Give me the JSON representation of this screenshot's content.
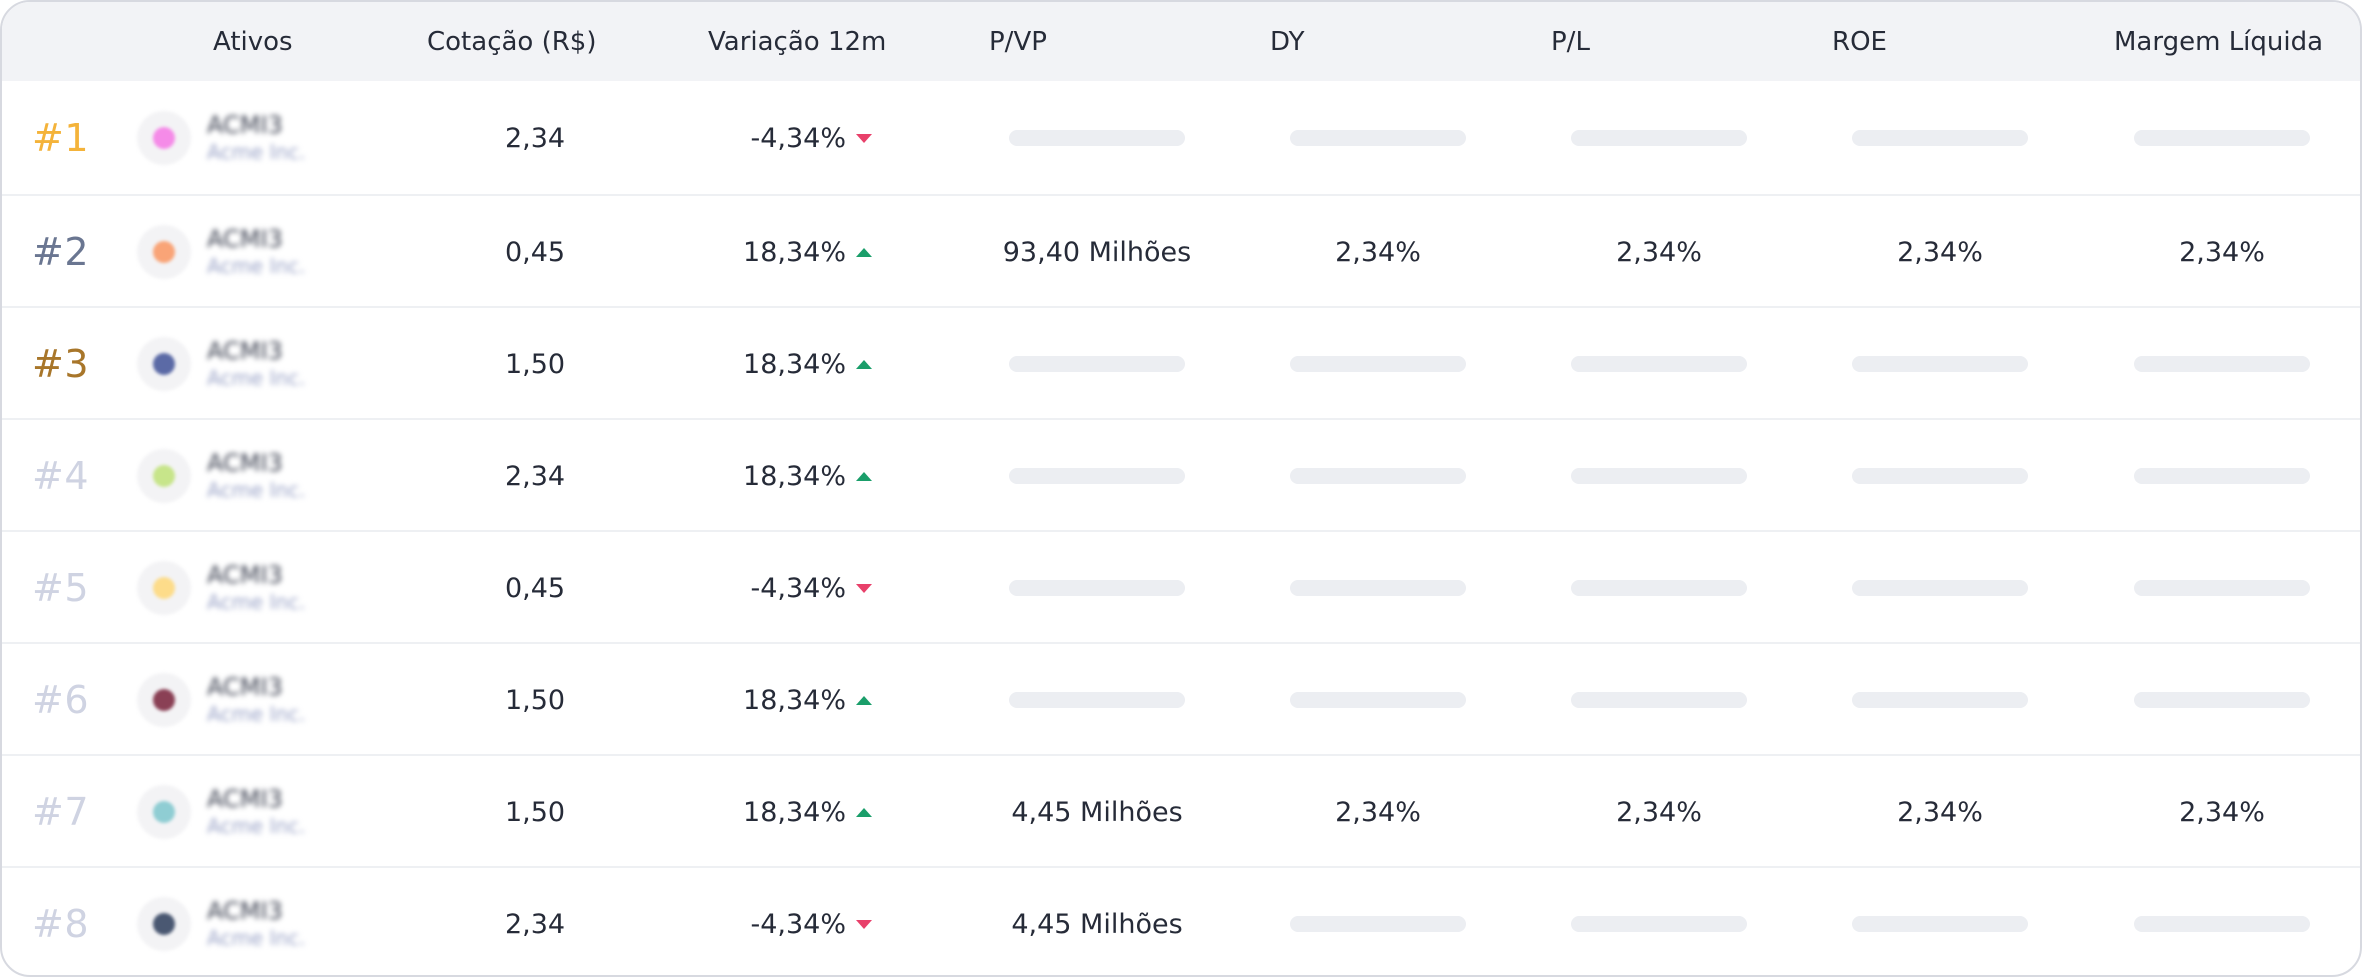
{
  "table": {
    "headers": {
      "ativos": "Ativos",
      "cotacao": "Cotação (R$)",
      "variacao": "Variação 12m",
      "pvp": "P/VP",
      "dy": "DY",
      "pl": "P/L",
      "roe": "ROE",
      "margem": "Margem Líquida"
    },
    "rows": [
      {
        "rank": "#1",
        "rank_color": "#f4b33a",
        "ticker": "ACMI3",
        "name": "Acme Inc.",
        "logo_color": "#f58be8",
        "cotacao": "2,34",
        "variacao": "-4,34%",
        "trend": "down",
        "pvp": "",
        "dy": "",
        "pl": "",
        "roe": "",
        "margem": ""
      },
      {
        "rank": "#2",
        "rank_color": "#6a7691",
        "ticker": "ACMI3",
        "name": "Acme Inc.",
        "logo_color": "#f9a477",
        "cotacao": "0,45",
        "variacao": "18,34%",
        "trend": "up",
        "pvp": "93,40 Milhões",
        "dy": "2,34%",
        "pl": "2,34%",
        "roe": "2,34%",
        "margem": "2,34%"
      },
      {
        "rank": "#3",
        "rank_color": "#a8762a",
        "ticker": "ACMI3",
        "name": "Acme Inc.",
        "logo_color": "#5b6aa6",
        "cotacao": "1,50",
        "variacao": "18,34%",
        "trend": "up",
        "pvp": "",
        "dy": "",
        "pl": "",
        "roe": "",
        "margem": ""
      },
      {
        "rank": "#4",
        "rank_color": "#cfd3e2",
        "ticker": "ACMI3",
        "name": "Acme Inc.",
        "logo_color": "#c7e58a",
        "cotacao": "2,34",
        "variacao": "18,34%",
        "trend": "up",
        "pvp": "",
        "dy": "",
        "pl": "",
        "roe": "",
        "margem": ""
      },
      {
        "rank": "#5",
        "rank_color": "#cfd3e2",
        "ticker": "ACMI3",
        "name": "Acme Inc.",
        "logo_color": "#fddc8a",
        "cotacao": "0,45",
        "variacao": "-4,34%",
        "trend": "down",
        "pvp": "",
        "dy": "",
        "pl": "",
        "roe": "",
        "margem": ""
      },
      {
        "rank": "#6",
        "rank_color": "#cfd3e2",
        "ticker": "ACMI3",
        "name": "Acme Inc.",
        "logo_color": "#8a4055",
        "cotacao": "1,50",
        "variacao": "18,34%",
        "trend": "up",
        "pvp": "",
        "dy": "",
        "pl": "",
        "roe": "",
        "margem": ""
      },
      {
        "rank": "#7",
        "rank_color": "#cfd3e2",
        "ticker": "ACMI3",
        "name": "Acme Inc.",
        "logo_color": "#8fcdd3",
        "cotacao": "1,50",
        "variacao": "18,34%",
        "trend": "up",
        "pvp": "4,45 Milhões",
        "dy": "2,34%",
        "pl": "2,34%",
        "roe": "2,34%",
        "margem": "2,34%"
      },
      {
        "rank": "#8",
        "rank_color": "#cfd3e2",
        "ticker": "ACMI3",
        "name": "Acme Inc.",
        "logo_color": "#4a5872",
        "cotacao": "2,34",
        "variacao": "-4,34%",
        "trend": "down",
        "pvp": "4,45 Milhões",
        "dy": "",
        "pl": "",
        "roe": "",
        "margem": ""
      }
    ]
  }
}
